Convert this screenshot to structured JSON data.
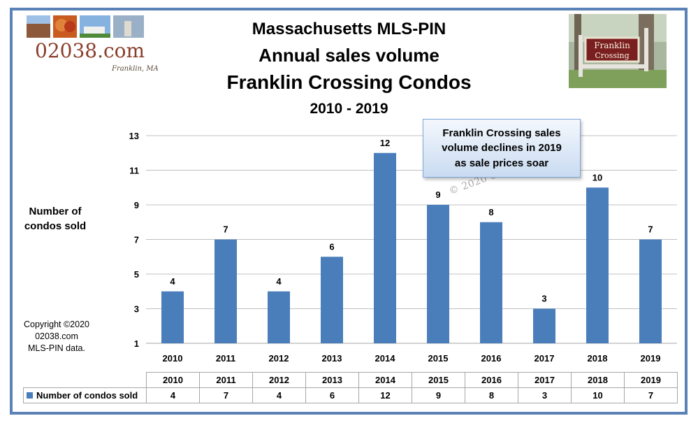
{
  "header": {
    "title_line1": "Massachusetts MLS-PIN",
    "title_line2": "Annual sales volume",
    "title_line3": "Franklin Crossing Condos",
    "title_line4": "2010 - 2019"
  },
  "logo": {
    "text": "02038.com",
    "subtext": "Franklin, MA"
  },
  "photo": {
    "sign_line1": "Franklin",
    "sign_line2": "Crossing"
  },
  "callout": {
    "line1": "Franklin Crossing sales",
    "line2": "volume declines in 2019",
    "line3": "as sale prices soar"
  },
  "watermark": "© 2020 02038.com",
  "copyright": {
    "line1": "Copyright ©2020",
    "line2": "02038.com",
    "line3": "MLS-PIN data."
  },
  "chart_data": {
    "type": "bar",
    "title": "Franklin Crossing Condos",
    "categories": [
      "2010",
      "2011",
      "2012",
      "2013",
      "2014",
      "2015",
      "2016",
      "2017",
      "2018",
      "2019"
    ],
    "series": [
      {
        "name": "Number of condos sold",
        "values": [
          4,
          7,
          4,
          6,
          12,
          9,
          8,
          3,
          10,
          7
        ],
        "color": "#4a7ebb"
      }
    ],
    "ylabel": "Number of condos sold",
    "ylim": [
      1,
      13
    ],
    "yticks": [
      "1",
      "3",
      "5",
      "7",
      "9",
      "11",
      "13"
    ],
    "grid": true,
    "data_labels": true,
    "data_table": true
  },
  "colors": {
    "frame": "#5b82b6",
    "bar": "#4a7ebb",
    "grid": "#c0c0c0"
  }
}
